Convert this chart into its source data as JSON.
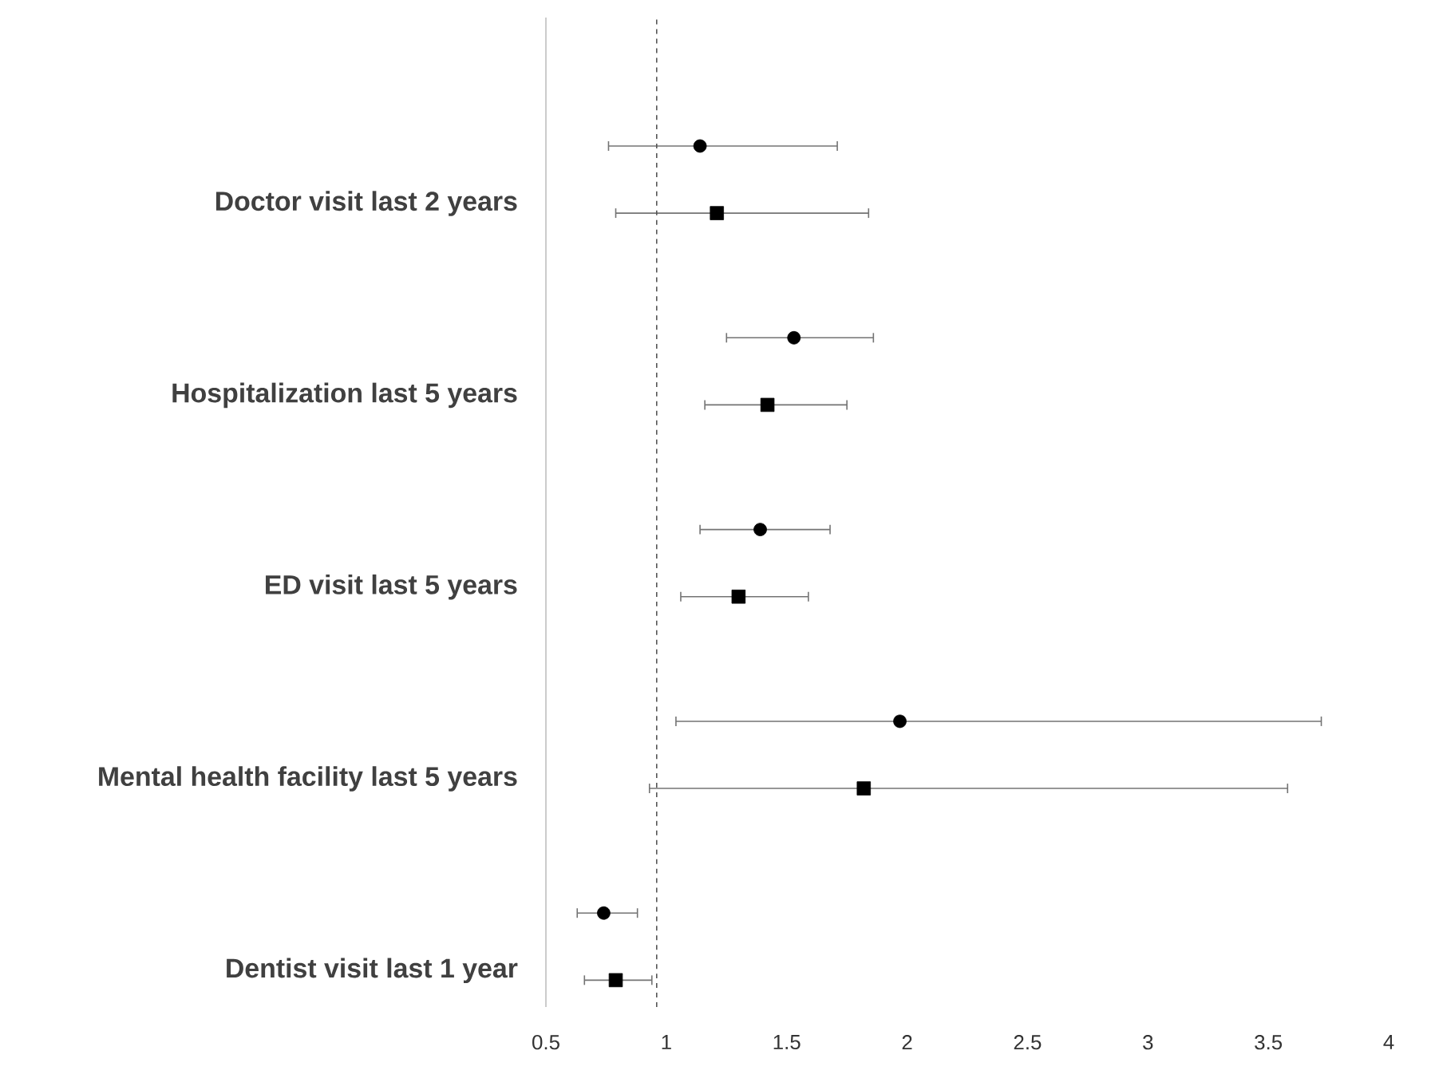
{
  "chart_data": {
    "type": "scatter",
    "categories": [
      "Doctor visit last 2 years",
      "Hospitalization last 5 years",
      "ED visit last 5 years",
      "Mental health facility last 5 years",
      "Dentist visit last 1 year"
    ],
    "series": [
      {
        "color": "#000000",
        "marker": "circle",
        "values": [
          1.14,
          1.53,
          1.39,
          1.97,
          0.74
        ],
        "errors": [
          [
            0.76,
            1.71
          ],
          [
            1.25,
            1.86
          ],
          [
            1.14,
            1.68
          ],
          [
            1.04,
            3.72
          ],
          [
            0.63,
            0.88
          ]
        ]
      },
      {
        "color": "#000000",
        "marker": "square",
        "values": [
          1.21,
          1.42,
          1.3,
          1.82,
          0.79
        ],
        "errors": [
          [
            0.79,
            1.84
          ],
          [
            1.16,
            1.75
          ],
          [
            1.06,
            1.59
          ],
          [
            0.93,
            3.58
          ],
          [
            0.66,
            0.94
          ]
        ]
      }
    ],
    "orientation": "horizontal",
    "xlim": [
      0.5,
      4
    ],
    "xticks": [
      0.5,
      1,
      1.5,
      2,
      2.5,
      3,
      3.5,
      4
    ],
    "ref_lines": [
      {
        "axis": "x",
        "value": 0.96,
        "line_style": "dashed",
        "color": "#555555"
      }
    ],
    "grid": false
  }
}
